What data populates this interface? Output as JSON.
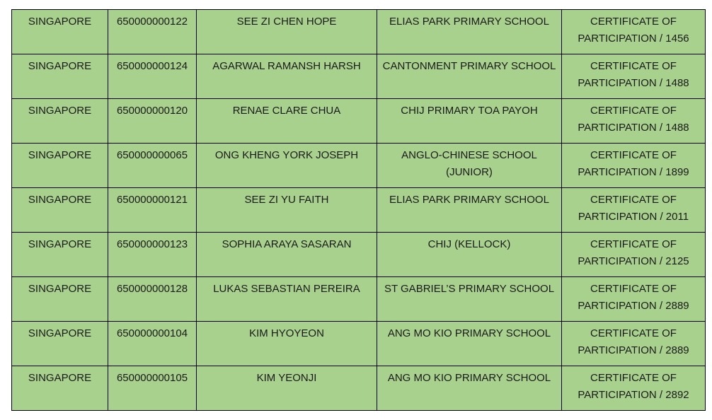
{
  "rows": [
    [
      "SINGAPORE",
      "650000000122",
      "SEE ZI CHEN HOPE",
      "ELIAS PARK PRIMARY SCHOOL",
      "CERTIFICATE OF PARTICIPATION / 1456"
    ],
    [
      "SINGAPORE",
      "650000000124",
      "AGARWAL RAMANSH HARSH",
      "CANTONMENT PRIMARY SCHOOL",
      "CERTIFICATE OF PARTICIPATION / 1488"
    ],
    [
      "SINGAPORE",
      "650000000120",
      "RENAE CLARE CHUA",
      "CHIJ PRIMARY TOA PAYOH",
      "CERTIFICATE OF PARTICIPATION / 1488"
    ],
    [
      "SINGAPORE",
      "650000000065",
      "ONG KHENG YORK JOSEPH",
      "ANGLO-CHINESE SCHOOL (JUNIOR)",
      "CERTIFICATE OF PARTICIPATION / 1899"
    ],
    [
      "SINGAPORE",
      "650000000121",
      "SEE ZI YU FAITH",
      "ELIAS PARK PRIMARY SCHOOL",
      "CERTIFICATE OF PARTICIPATION / 2011"
    ],
    [
      "SINGAPORE",
      "650000000123",
      "SOPHIA ARAYA SASARAN",
      "CHIJ (KELLOCK)",
      "CERTIFICATE OF PARTICIPATION / 2125"
    ],
    [
      "SINGAPORE",
      "650000000128",
      "LUKAS SEBASTIAN PEREIRA",
      "ST GABRIEL’S PRIMARY SCHOOL",
      "CERTIFICATE OF PARTICIPATION / 2889"
    ],
    [
      "SINGAPORE",
      "650000000104",
      "KIM HYOYEON",
      "ANG MO KIO PRIMARY SCHOOL",
      "CERTIFICATE OF PARTICIPATION / 2889"
    ],
    [
      "SINGAPORE",
      "650000000105",
      "KIM YEONJI",
      "ANG MO KIO PRIMARY SCHOOL",
      "CERTIFICATE OF PARTICIPATION / 2892"
    ]
  ],
  "colors": {
    "cell_background": "#a9d18e"
  }
}
